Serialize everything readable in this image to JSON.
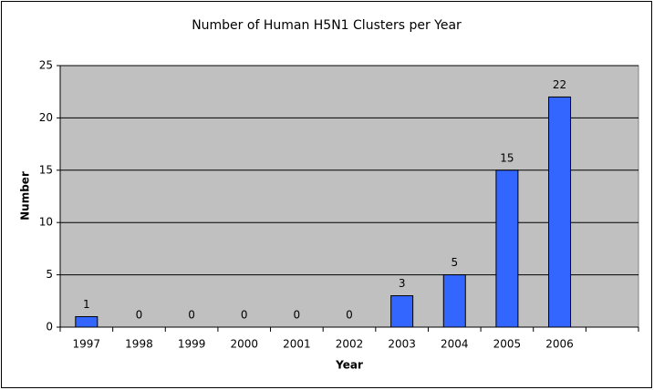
{
  "chart_data": {
    "type": "bar",
    "title": "Number of Human H5N1 Clusters per Year",
    "x_label": "Year",
    "y_label": "Number",
    "categories": [
      "1997",
      "1998",
      "1999",
      "2000",
      "2001",
      "2002",
      "2003",
      "2004",
      "2005",
      "2006",
      null
    ],
    "values": [
      1,
      0,
      0,
      0,
      0,
      0,
      3,
      5,
      15,
      22,
      null
    ],
    "color": "#3366ff",
    "ylim": [
      0,
      25
    ],
    "yticks": [
      0,
      5,
      10,
      15,
      20,
      25
    ],
    "grid": true
  }
}
